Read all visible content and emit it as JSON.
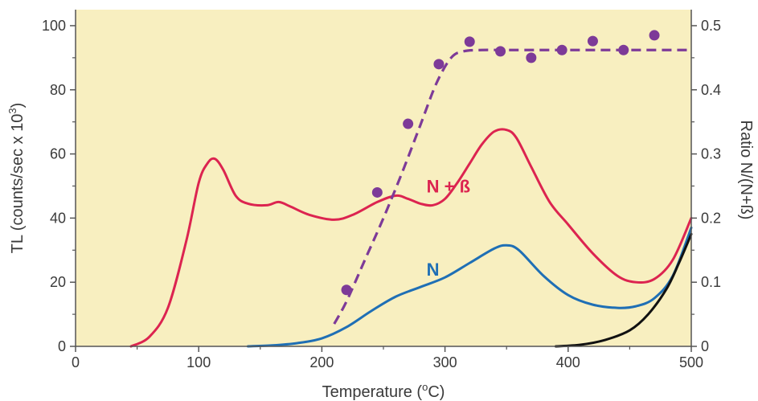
{
  "chart_data": {
    "type": "line",
    "xlabel": "Temperature (",
    "xlabel_sup": "o",
    "xlabel_end": "C)",
    "ylabel": "TL (counts/sec x 10",
    "ylabel_sup": "3",
    "ylabel_end": ")",
    "y2label": "Ratio N/(N+ß)",
    "xlim": [
      0,
      500
    ],
    "ylim": [
      0,
      105
    ],
    "y2lim": [
      0,
      0.525
    ],
    "x_ticks": [
      0,
      100,
      200,
      300,
      400,
      500
    ],
    "y_ticks": [
      0,
      20,
      40,
      60,
      80,
      100
    ],
    "y2_ticks": [
      0,
      0.1,
      0.2,
      0.3,
      0.4,
      0.5
    ],
    "y2_tick_labels": [
      "0",
      "0.1",
      "0.2",
      "0.3",
      "0.4",
      "0.5"
    ],
    "background_color": "#f8efc0",
    "series": [
      {
        "name": "N + ß",
        "color": "#dc2450",
        "axis": "left",
        "x": [
          45,
          60,
          75,
          90,
          100,
          107,
          113,
          120,
          130,
          140,
          155,
          165,
          175,
          190,
          210,
          225,
          245,
          260,
          270,
          280,
          290,
          300,
          310,
          320,
          330,
          340,
          350,
          358,
          370,
          385,
          400,
          420,
          440,
          455,
          470,
          485,
          500
        ],
        "y": [
          0,
          3,
          12,
          33,
          51,
          57,
          58.5,
          55,
          47,
          44.5,
          44,
          45,
          43.5,
          41,
          39.5,
          41,
          45,
          47,
          46,
          44.5,
          44,
          46,
          51,
          57,
          63,
          67,
          67.5,
          65,
          56,
          45,
          38,
          29,
          22,
          20,
          21,
          27,
          40
        ]
      },
      {
        "name": "N",
        "color": "#1f6fb5",
        "axis": "left",
        "x": [
          140,
          160,
          180,
          200,
          220,
          240,
          260,
          280,
          300,
          320,
          340,
          350,
          360,
          380,
          400,
          420,
          440,
          455,
          470,
          485,
          500
        ],
        "y": [
          0,
          0.3,
          1,
          2.5,
          6,
          11,
          15.5,
          18.5,
          21.5,
          26,
          30.5,
          31.5,
          30,
          22,
          16,
          13,
          12,
          12.5,
          15,
          22,
          37
        ]
      },
      {
        "name": "",
        "color": "#111111",
        "axis": "left",
        "x": [
          390,
          410,
          430,
          450,
          465,
          480,
          490,
          500
        ],
        "y": [
          0,
          0.5,
          2,
          5,
          10,
          18,
          26,
          35
        ]
      },
      {
        "name": "",
        "color": "#7d3a98",
        "axis": "right",
        "style": "dashed",
        "x": [
          210,
          220,
          235,
          250,
          265,
          280,
          293,
          305,
          315,
          330,
          350,
          380,
          420,
          460,
          500
        ],
        "y": [
          0.035,
          0.07,
          0.135,
          0.2,
          0.27,
          0.345,
          0.41,
          0.45,
          0.46,
          0.462,
          0.462,
          0.462,
          0.462,
          0.462,
          0.462
        ]
      }
    ],
    "points": {
      "axis": "right",
      "color": "#7d3a98",
      "x": [
        220,
        245,
        270,
        295,
        320,
        345,
        370,
        395,
        420,
        445,
        470
      ],
      "y": [
        0.088,
        0.24,
        0.347,
        0.44,
        0.475,
        0.46,
        0.45,
        0.462,
        0.476,
        0.462,
        0.485
      ]
    },
    "series_labels": [
      {
        "text": "N + ß",
        "x": 285,
        "y": 48,
        "color": "#dc2450"
      },
      {
        "text": "N",
        "x": 285,
        "y": 22,
        "color": "#1f6fb5"
      }
    ],
    "grid": false
  }
}
